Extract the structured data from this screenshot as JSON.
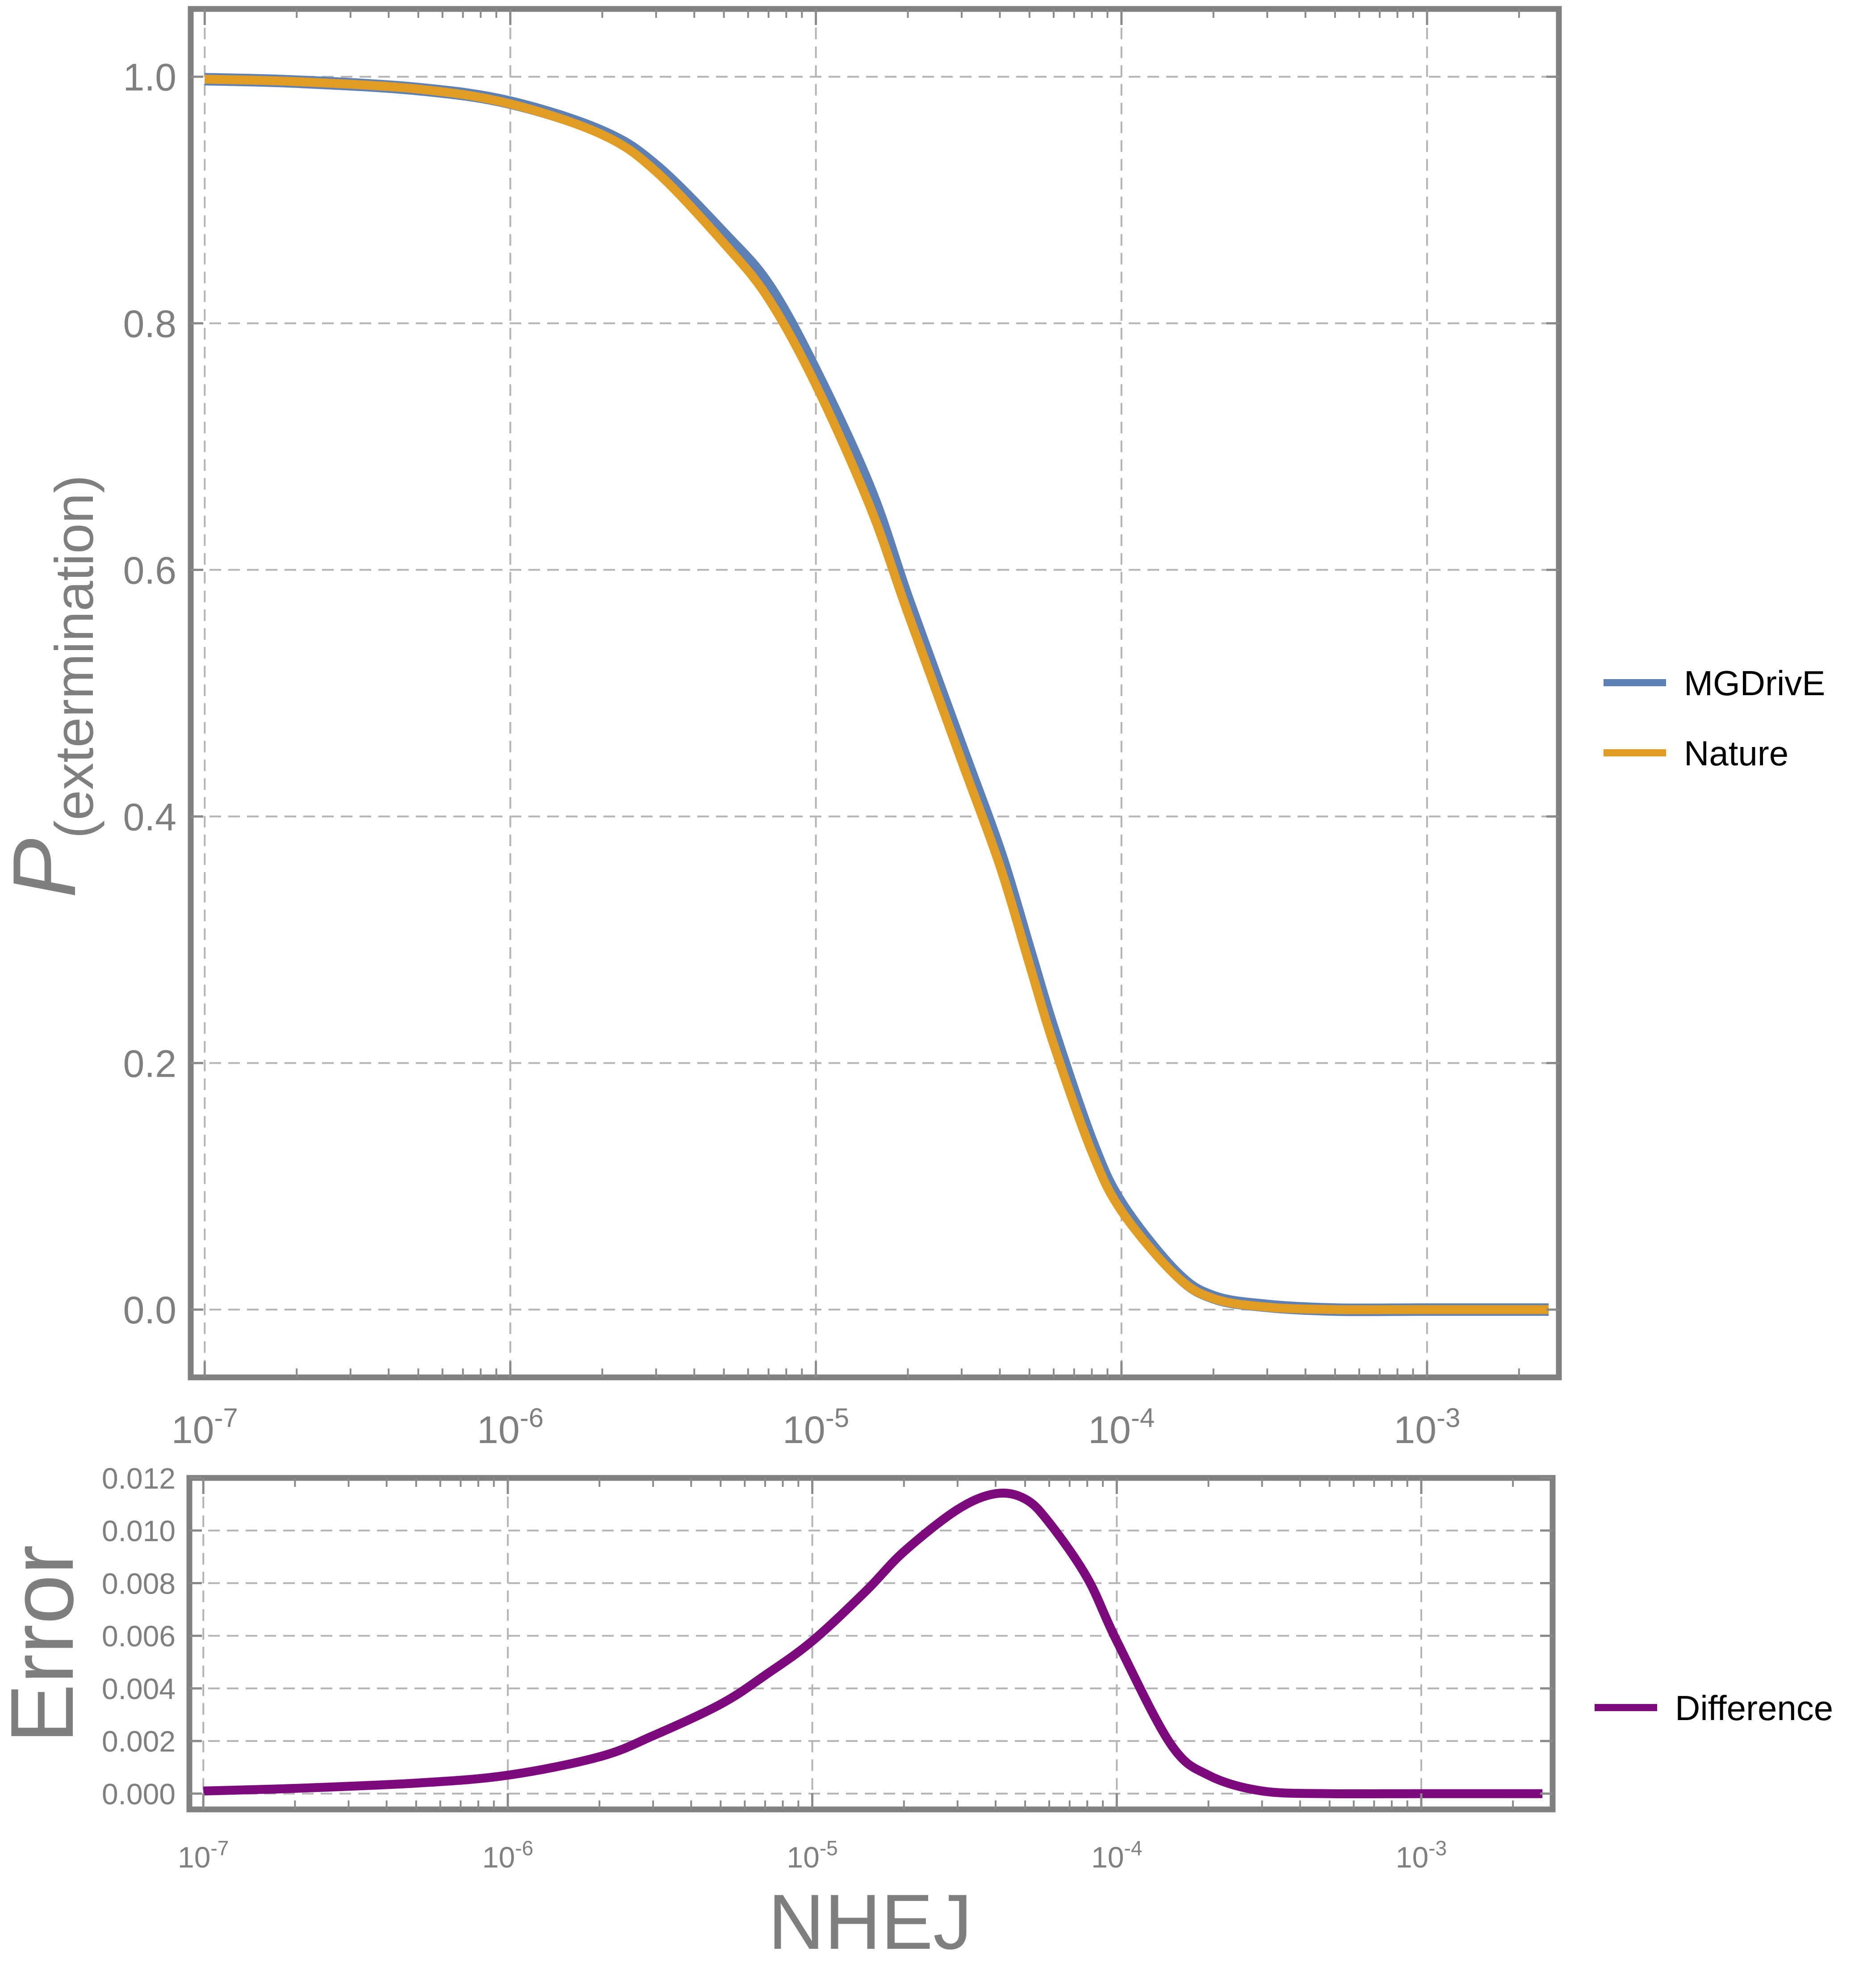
{
  "chart_data": [
    {
      "type": "line",
      "xlabel": "",
      "ylabel": "P",
      "ylabel_subscript": "(extermination)",
      "x_scale": "log",
      "xlim": [
        9e-08,
        0.0027
      ],
      "ylim": [
        -0.055,
        1.055
      ],
      "x_ticks": [
        {
          "value": 1e-07,
          "base": "10",
          "exp": "-7"
        },
        {
          "value": 1e-06,
          "base": "10",
          "exp": "-6"
        },
        {
          "value": 1e-05,
          "base": "10",
          "exp": "-5"
        },
        {
          "value": 0.0001,
          "base": "10",
          "exp": "-4"
        },
        {
          "value": 0.001,
          "base": "10",
          "exp": "-3"
        }
      ],
      "y_ticks": [
        "0.0",
        "0.2",
        "0.4",
        "0.6",
        "0.8",
        "1.0"
      ],
      "grid": true,
      "legend": "right",
      "series": [
        {
          "name": "MGDrivE",
          "color": "#5e81b5",
          "x": [
            1e-07,
            2e-07,
            5e-07,
            1e-06,
            2e-06,
            3e-06,
            5e-06,
            7e-06,
            1e-05,
            1.5e-05,
            2e-05,
            3e-05,
            4e-05,
            5e-05,
            6e-05,
            8e-05,
            0.0001,
            0.00015,
            0.0002,
            0.0003,
            0.0005,
            0.001,
            0.0025
          ],
          "y": [
            0.998,
            0.996,
            0.99,
            0.979,
            0.955,
            0.927,
            0.872,
            0.83,
            0.76,
            0.665,
            0.575,
            0.455,
            0.37,
            0.29,
            0.225,
            0.135,
            0.085,
            0.03,
            0.01,
            0.003,
            0.0,
            0.0,
            0.0
          ]
        },
        {
          "name": "Nature",
          "color": "#e19c24",
          "x": [
            1e-07,
            2e-07,
            5e-07,
            1e-06,
            2e-06,
            3e-06,
            5e-06,
            7e-06,
            1e-05,
            1.5e-05,
            2e-05,
            3e-05,
            4e-05,
            5e-05,
            6e-05,
            8e-05,
            0.0001,
            0.00015,
            0.0002,
            0.0003,
            0.0005,
            0.001,
            0.0025
          ],
          "y": [
            0.998,
            0.996,
            0.99,
            0.978,
            0.953,
            0.923,
            0.865,
            0.82,
            0.75,
            0.652,
            0.565,
            0.445,
            0.36,
            0.28,
            0.215,
            0.128,
            0.08,
            0.028,
            0.009,
            0.002,
            0.0,
            0.0,
            0.0
          ]
        }
      ]
    },
    {
      "type": "line",
      "xlabel": "NHEJ",
      "ylabel": "Error",
      "x_scale": "log",
      "xlim": [
        9e-08,
        0.0027
      ],
      "ylim": [
        -0.0006,
        0.012
      ],
      "x_ticks": [
        {
          "value": 1e-07,
          "base": "10",
          "exp": "-7"
        },
        {
          "value": 1e-06,
          "base": "10",
          "exp": "-6"
        },
        {
          "value": 1e-05,
          "base": "10",
          "exp": "-5"
        },
        {
          "value": 0.0001,
          "base": "10",
          "exp": "-4"
        },
        {
          "value": 0.001,
          "base": "10",
          "exp": "-3"
        }
      ],
      "y_ticks": [
        "0.000",
        "0.002",
        "0.004",
        "0.006",
        "0.008",
        "0.010",
        "0.012"
      ],
      "grid": true,
      "legend": "right",
      "series": [
        {
          "name": "Difference",
          "color": "#7d0a7d",
          "x": [
            1e-07,
            2e-07,
            5e-07,
            1e-06,
            2e-06,
            3e-06,
            5e-06,
            7e-06,
            1e-05,
            1.5e-05,
            2e-05,
            3e-05,
            4e-05,
            5e-05,
            6e-05,
            8e-05,
            0.0001,
            0.00015,
            0.0002,
            0.0003,
            0.0005,
            0.001,
            0.0025
          ],
          "y": [
            0.0001,
            0.0002,
            0.0004,
            0.0007,
            0.0014,
            0.0022,
            0.0034,
            0.0045,
            0.0058,
            0.0077,
            0.0092,
            0.0108,
            0.0114,
            0.0112,
            0.0103,
            0.0082,
            0.0058,
            0.0019,
            0.0007,
            0.0001,
            0.0,
            0.0,
            0.0
          ]
        }
      ]
    }
  ]
}
